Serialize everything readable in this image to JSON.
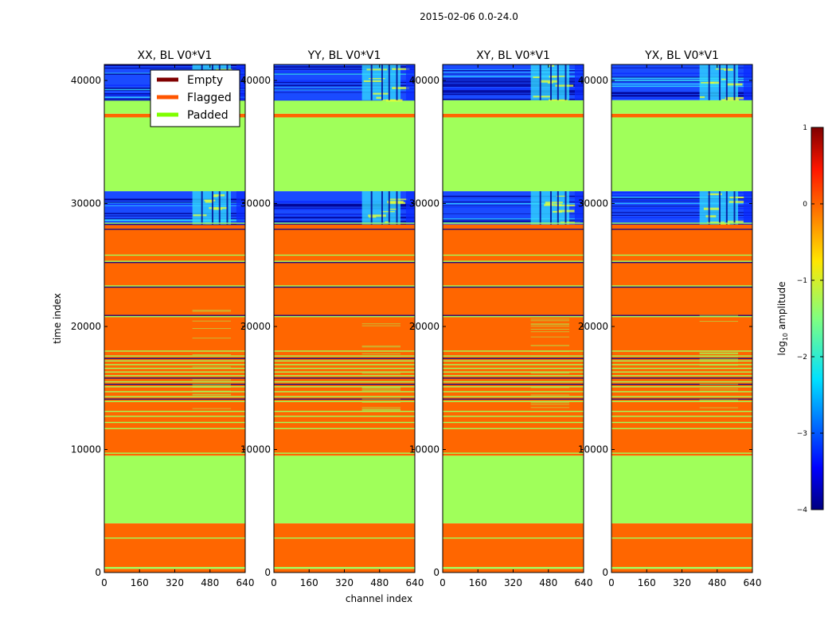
{
  "chart_data": {
    "type": "heatmap",
    "suptitle": "2015-02-06 0.0-24.0",
    "xlabel": "channel index",
    "ylabel": "time index",
    "xlim": [
      0,
      640
    ],
    "ylim": [
      0,
      41300
    ],
    "xticks": [
      0,
      160,
      320,
      480,
      640
    ],
    "yticks": [
      0,
      10000,
      20000,
      30000,
      40000
    ],
    "panels": [
      {
        "title": "XX, BL V0*V1"
      },
      {
        "title": "YY, BL V0*V1"
      },
      {
        "title": "XY, BL V0*V1"
      },
      {
        "title": "YX, BL V0*V1"
      }
    ],
    "legend": {
      "location": "top-right of first panel",
      "entries": [
        {
          "label": "Empty",
          "color": "#800000"
        },
        {
          "label": "Flagged",
          "color": "#ff5500"
        },
        {
          "label": "Padded",
          "color": "#7fff00"
        }
      ]
    },
    "colorbar": {
      "label": "log10 amplitude",
      "label_main": "log",
      "label_sub": "10",
      "label_tail": " amplitude",
      "min": -4,
      "max": 1,
      "ticks": [
        1,
        0,
        -1,
        -2,
        -3,
        -4
      ]
    },
    "bands": [
      {
        "category": "flagged",
        "y0": 0,
        "y1": 300
      },
      {
        "category": "data_faint",
        "y0": 300,
        "y1": 450
      },
      {
        "category": "flagged",
        "y0": 450,
        "y1": 4000
      },
      {
        "category": "padded",
        "y0": 4000,
        "y1": 9500
      },
      {
        "category": "flagged",
        "y0": 9500,
        "y1": 28300
      },
      {
        "category": "data_strong",
        "y0": 28300,
        "y1": 31000
      },
      {
        "category": "padded",
        "y0": 31000,
        "y1": 37000
      },
      {
        "category": "flagged",
        "y0": 37000,
        "y1": 37300
      },
      {
        "category": "padded",
        "y0": 37300,
        "y1": 38400
      },
      {
        "category": "data_strong",
        "y0": 38400,
        "y1": 41300
      }
    ],
    "thin_padded_lines": [
      2800,
      9700,
      11700,
      12200,
      12700,
      13100,
      13900,
      14300,
      14700,
      15100,
      15500,
      16000,
      16300,
      16600,
      16900,
      17200,
      17600,
      18000,
      20800,
      23300,
      25300,
      25800,
      28400
    ],
    "thin_empty_lines": [
      14100,
      15300,
      15800,
      17400,
      20900,
      23200,
      25200,
      27900
    ],
    "colors": {
      "flagged": "#ff6600",
      "padded": "#a0ff5a",
      "empty": "#800000",
      "data_blue": "#1a4bff",
      "data_dark": "#000090",
      "data_cyan": "#33ddff",
      "data_yellow": "#e6ff33"
    }
  }
}
